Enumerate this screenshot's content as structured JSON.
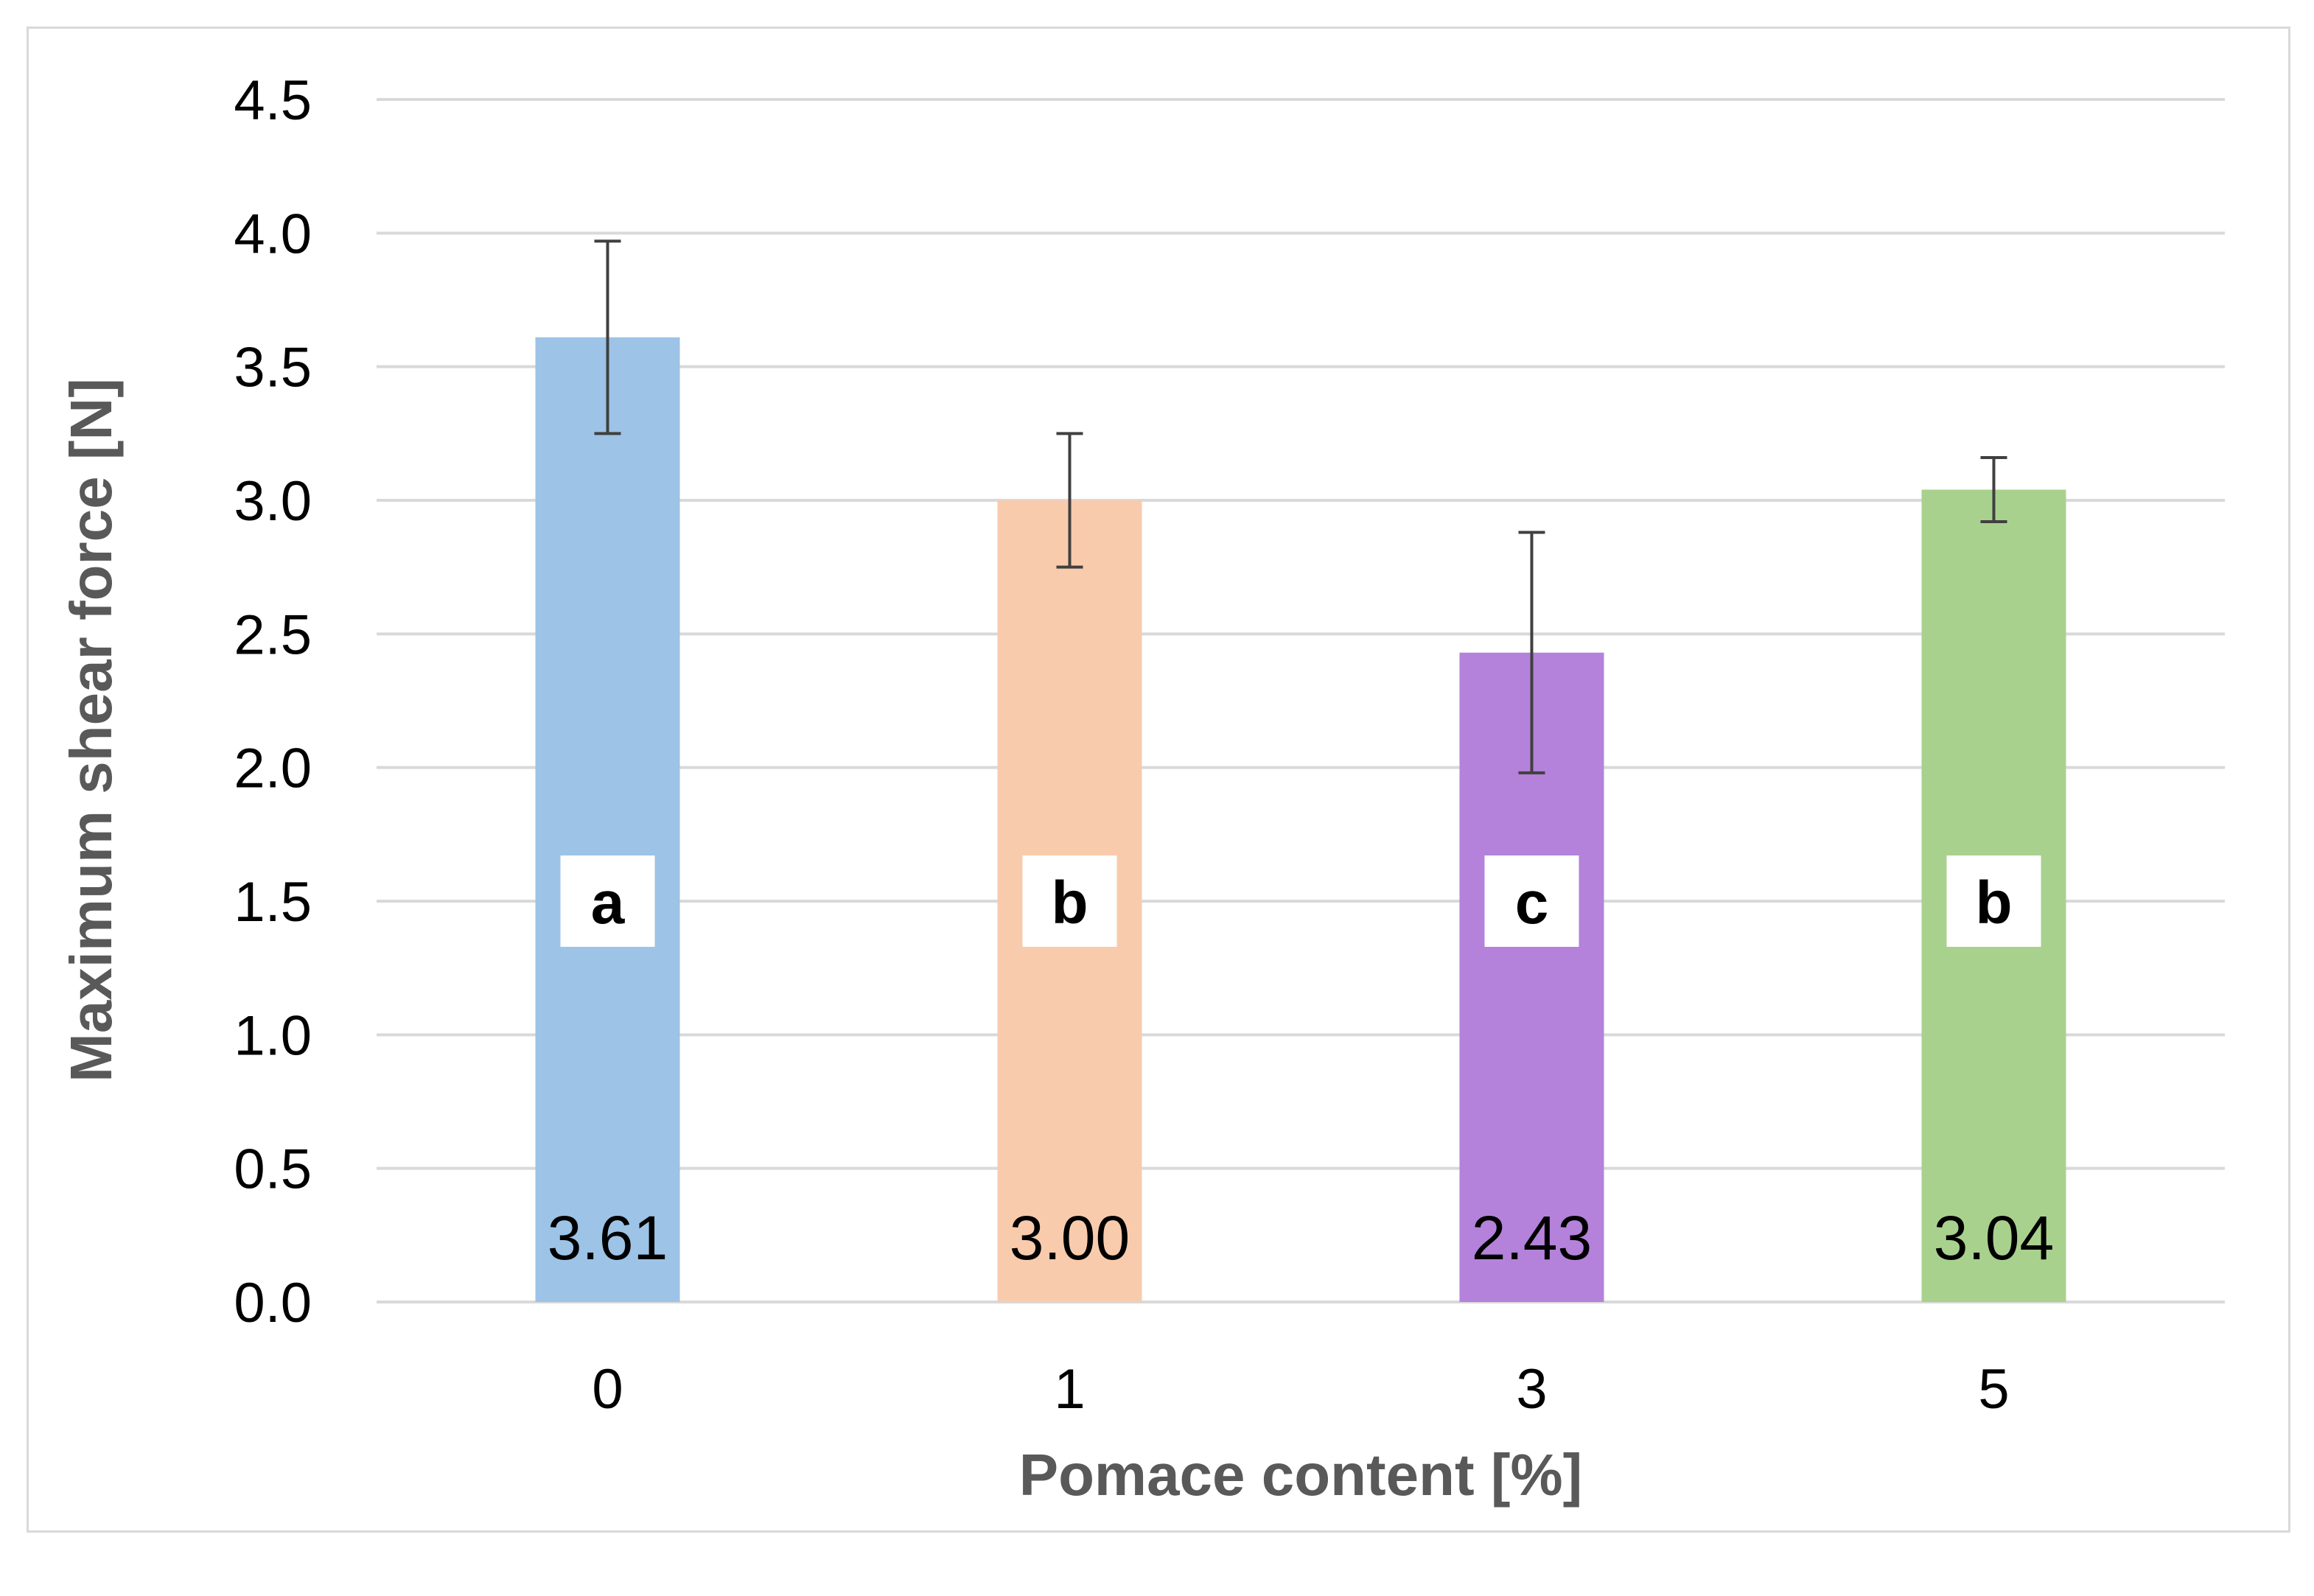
{
  "chart_data": {
    "type": "bar",
    "categories": [
      "0",
      "1",
      "3",
      "5"
    ],
    "values": [
      3.61,
      3.0,
      2.43,
      3.04
    ],
    "data_labels": [
      "3.61",
      "3.00",
      "2.43",
      "3.04"
    ],
    "error_bars": [
      0.36,
      0.25,
      0.45,
      0.12
    ],
    "significance_letters": [
      "a",
      "b",
      "c",
      "b"
    ],
    "bar_colors": [
      "#9dc3e6",
      "#f8cbad",
      "#b482da",
      "#a9d18e"
    ],
    "title": "",
    "xlabel": "Pomace content [%]",
    "ylabel": "Maximum shear force [N]",
    "ylim": [
      0,
      4.5
    ],
    "yticks": [
      "0.0",
      "0.5",
      "1.0",
      "1.5",
      "2.0",
      "2.5",
      "3.0",
      "3.5",
      "4.0",
      "4.5"
    ],
    "grid": true,
    "legend": "none"
  }
}
